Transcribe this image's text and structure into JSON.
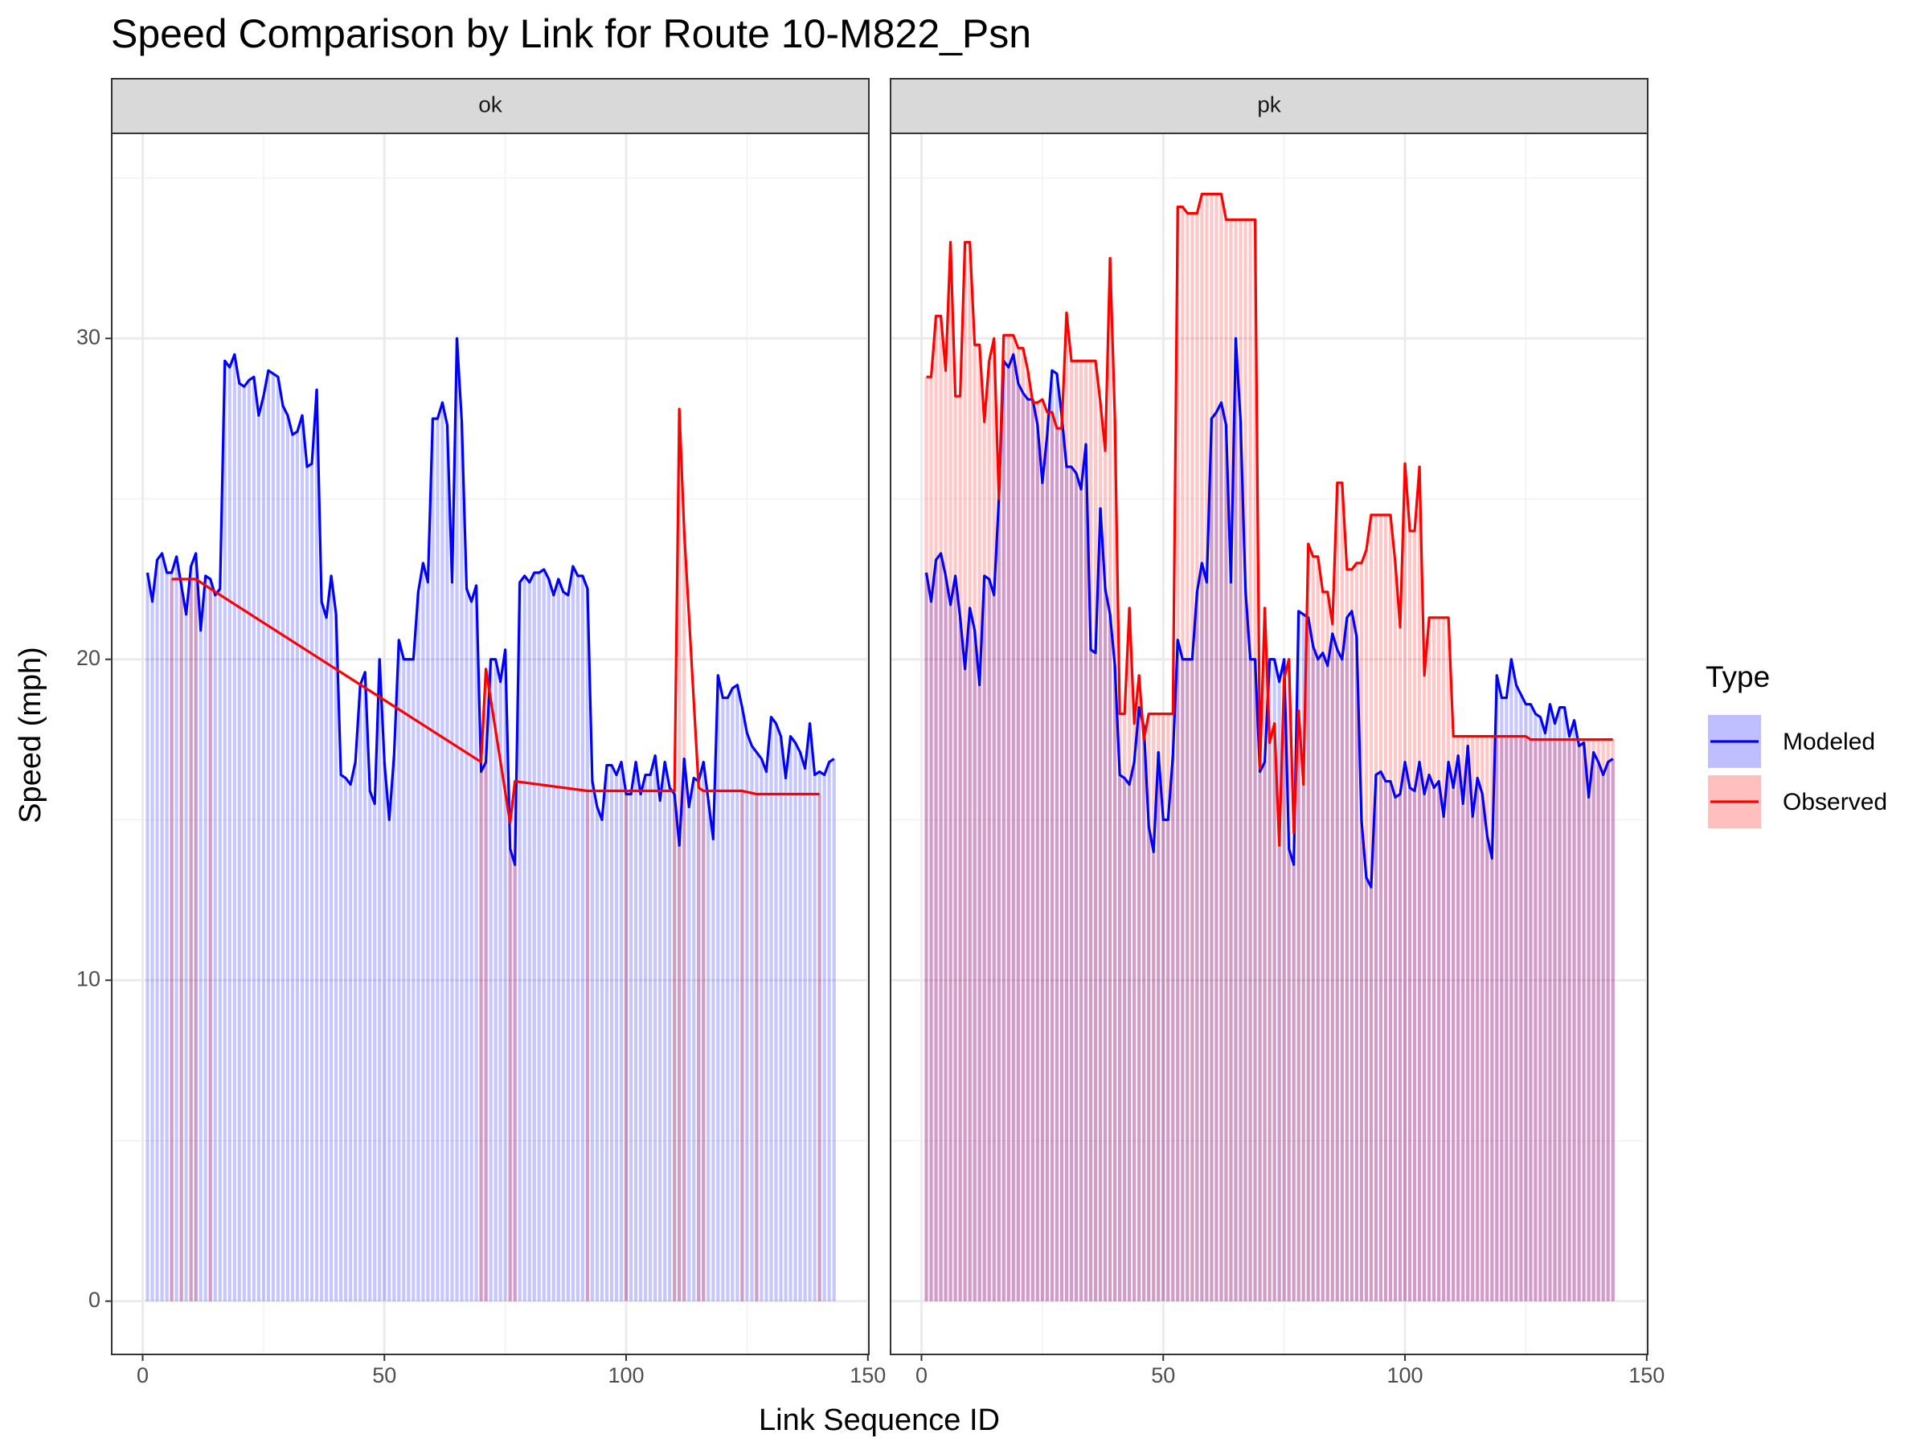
{
  "chart_data": {
    "type": "line",
    "title": "Speed Comparison by Link for Route 10-M822_Psn",
    "xlabel": "Link Sequence ID",
    "ylabel": "Speed (mph)",
    "legend_title": "Type",
    "xlim": [
      -6.4,
      150.2
    ],
    "ylim": [
      -1.66,
      36.39
    ],
    "xticks": [
      0,
      50,
      100,
      150
    ],
    "yticks": [
      0,
      10,
      20,
      30
    ],
    "minor_xticks": [
      25,
      75,
      125
    ],
    "minor_yticks": [
      5,
      15,
      25,
      35
    ],
    "grid": true,
    "facets": [
      {
        "label": "ok",
        "series": [
          {
            "name": "Modeled",
            "color": "#0000ff",
            "x": [
              1,
              2,
              3,
              4,
              5,
              6,
              7,
              8,
              9,
              10,
              11,
              12,
              13,
              14,
              15,
              16,
              17,
              18,
              19,
              20,
              21,
              22,
              23,
              24,
              25,
              26,
              27,
              28,
              29,
              30,
              31,
              32,
              33,
              34,
              35,
              36,
              37,
              38,
              39,
              40,
              41,
              42,
              43,
              44,
              45,
              46,
              47,
              48,
              49,
              50,
              51,
              52,
              53,
              54,
              55,
              56,
              57,
              58,
              59,
              60,
              61,
              62,
              63,
              64,
              65,
              66,
              67,
              68,
              69,
              70,
              71,
              72,
              73,
              74,
              75,
              76,
              77,
              78,
              79,
              80,
              81,
              82,
              83,
              84,
              85,
              86,
              87,
              88,
              89,
              90,
              91,
              92,
              93,
              94,
              95,
              96,
              97,
              98,
              99,
              100,
              101,
              102,
              103,
              104,
              105,
              106,
              107,
              108,
              109,
              110,
              111,
              112,
              113,
              114,
              115,
              116,
              117,
              118,
              119,
              120,
              121,
              122,
              123,
              124,
              125,
              126,
              127,
              128,
              129,
              130,
              131,
              132,
              133,
              134,
              135,
              136,
              137,
              138,
              139,
              140,
              141,
              142,
              143
            ],
            "values": [
              22.7,
              21.8,
              23.1,
              23.3,
              22.7,
              22.7,
              23.2,
              22.3,
              21.4,
              22.9,
              23.3,
              20.9,
              22.6,
              22.5,
              22.0,
              22.2,
              29.3,
              29.1,
              29.5,
              28.6,
              28.5,
              28.7,
              28.8,
              27.6,
              28.2,
              29.0,
              28.9,
              28.8,
              27.9,
              27.6,
              27.0,
              27.1,
              27.6,
              26.0,
              26.1,
              28.4,
              21.8,
              21.3,
              22.6,
              21.4,
              16.4,
              16.3,
              16.1,
              16.8,
              19.2,
              19.6,
              15.9,
              15.5,
              20.0,
              16.8,
              15.0,
              17.0,
              20.6,
              20.0,
              20.0,
              20.0,
              22.1,
              23.0,
              22.4,
              27.5,
              27.5,
              28.0,
              27.3,
              22.4,
              30.0,
              27.4,
              22.2,
              21.8,
              22.3,
              16.5,
              16.8,
              20.0,
              20.0,
              19.3,
              20.3,
              14.1,
              13.6,
              22.4,
              22.6,
              22.4,
              22.7,
              22.7,
              22.8,
              22.5,
              22.0,
              22.5,
              22.1,
              22.0,
              22.9,
              22.6,
              22.6,
              22.2,
              16.2,
              15.4,
              15.0,
              16.7,
              16.7,
              16.4,
              16.8,
              15.8,
              15.8,
              16.8,
              15.8,
              16.4,
              16.4,
              17.0,
              15.6,
              16.8,
              16.0,
              15.8,
              14.2,
              16.9,
              15.4,
              16.3,
              16.2,
              16.8,
              15.6,
              14.4,
              19.5,
              18.8,
              18.8,
              19.1,
              19.2,
              18.5,
              17.7,
              17.3,
              17.1,
              16.9,
              16.5,
              18.2,
              18.0,
              17.6,
              16.3,
              17.6,
              17.4,
              17.1,
              16.6,
              18.0,
              16.4,
              16.5,
              16.4,
              16.8,
              16.9
            ]
          },
          {
            "name": "Observed",
            "color": "#ff0000",
            "x": [
              6,
              8,
              10,
              11,
              14,
              70,
              71,
              76,
              77,
              92,
              100,
              110,
              111,
              112,
              115,
              116,
              124,
              127,
              140
            ],
            "values": [
              22.5,
              22.5,
              22.5,
              22.5,
              22.2,
              16.8,
              19.7,
              14.9,
              16.2,
              15.9,
              15.9,
              15.9,
              27.8,
              24.0,
              16.0,
              15.9,
              15.9,
              15.8,
              15.8
            ]
          }
        ]
      },
      {
        "label": "pk",
        "series": [
          {
            "name": "Modeled",
            "color": "#0000ff",
            "x": [
              1,
              2,
              3,
              4,
              5,
              6,
              7,
              8,
              9,
              10,
              11,
              12,
              13,
              14,
              15,
              16,
              17,
              18,
              19,
              20,
              21,
              22,
              23,
              24,
              25,
              26,
              27,
              28,
              29,
              30,
              31,
              32,
              33,
              34,
              35,
              36,
              37,
              38,
              39,
              40,
              41,
              42,
              43,
              44,
              45,
              46,
              47,
              48,
              49,
              50,
              51,
              52,
              53,
              54,
              55,
              56,
              57,
              58,
              59,
              60,
              61,
              62,
              63,
              64,
              65,
              66,
              67,
              68,
              69,
              70,
              71,
              72,
              73,
              74,
              75,
              76,
              77,
              78,
              79,
              80,
              81,
              82,
              83,
              84,
              85,
              86,
              87,
              88,
              89,
              90,
              91,
              92,
              93,
              94,
              95,
              96,
              97,
              98,
              99,
              100,
              101,
              102,
              103,
              104,
              105,
              106,
              107,
              108,
              109,
              110,
              111,
              112,
              113,
              114,
              115,
              116,
              117,
              118,
              119,
              120,
              121,
              122,
              123,
              124,
              125,
              126,
              127,
              128,
              129,
              130,
              131,
              132,
              133,
              134,
              135,
              136,
              137,
              138,
              139,
              140,
              141,
              142,
              143
            ],
            "values": [
              22.7,
              21.8,
              23.1,
              23.3,
              22.6,
              21.7,
              22.6,
              21.3,
              19.7,
              21.6,
              20.9,
              19.2,
              22.6,
              22.5,
              22.0,
              25.0,
              29.3,
              29.1,
              29.5,
              28.6,
              28.3,
              28.1,
              28.1,
              27.3,
              25.5,
              27.0,
              29.0,
              28.9,
              27.6,
              26.0,
              26.0,
              25.8,
              25.3,
              26.7,
              20.3,
              20.2,
              24.7,
              22.2,
              21.4,
              19.8,
              16.4,
              16.3,
              16.1,
              16.8,
              18.5,
              17.9,
              14.8,
              14.0,
              17.1,
              15.0,
              15.0,
              17.0,
              20.6,
              20.0,
              20.0,
              20.0,
              22.1,
              23.0,
              22.4,
              27.5,
              27.7,
              28.0,
              27.3,
              22.4,
              30.0,
              27.4,
              22.2,
              20.0,
              20.0,
              16.5,
              16.8,
              20.0,
              20.0,
              19.3,
              20.0,
              14.1,
              13.6,
              21.5,
              21.4,
              21.3,
              20.4,
              20.0,
              20.2,
              19.8,
              20.8,
              20.3,
              20.0,
              21.3,
              21.5,
              20.7,
              15.0,
              13.2,
              12.9,
              16.4,
              16.5,
              16.2,
              16.2,
              15.7,
              15.8,
              16.8,
              16.0,
              15.9,
              16.8,
              15.8,
              16.4,
              16.0,
              16.2,
              15.1,
              16.8,
              16.0,
              17.0,
              15.5,
              17.3,
              15.1,
              16.3,
              15.8,
              14.5,
              13.8,
              19.5,
              18.8,
              18.8,
              20.0,
              19.2,
              18.9,
              18.6,
              18.6,
              18.3,
              18.2,
              17.7,
              18.6,
              18.0,
              18.5,
              18.5,
              17.6,
              18.1,
              17.3,
              17.4,
              15.7,
              17.1,
              16.8,
              16.4,
              16.8,
              16.9
            ]
          },
          {
            "name": "Observed",
            "color": "#ff0000",
            "x": [
              1,
              2,
              3,
              4,
              5,
              6,
              7,
              8,
              9,
              10,
              11,
              12,
              13,
              14,
              15,
              16,
              17,
              18,
              19,
              20,
              21,
              22,
              23,
              24,
              25,
              26,
              27,
              28,
              29,
              30,
              31,
              32,
              33,
              34,
              35,
              36,
              37,
              38,
              39,
              40,
              41,
              42,
              43,
              44,
              45,
              46,
              47,
              48,
              49,
              50,
              51,
              52,
              53,
              54,
              55,
              56,
              57,
              58,
              59,
              60,
              61,
              62,
              63,
              64,
              65,
              66,
              67,
              68,
              69,
              70,
              71,
              72,
              73,
              74,
              75,
              76,
              77,
              78,
              79,
              80,
              81,
              82,
              83,
              84,
              85,
              86,
              87,
              88,
              89,
              90,
              91,
              92,
              93,
              94,
              95,
              96,
              97,
              98,
              99,
              100,
              101,
              102,
              103,
              104,
              105,
              106,
              107,
              108,
              109,
              110,
              111,
              112,
              113,
              114,
              115,
              116,
              117,
              118,
              119,
              120,
              121,
              122,
              123,
              124,
              125,
              126,
              127,
              128,
              129,
              130,
              131,
              132,
              133,
              134,
              135,
              136,
              137,
              138,
              139,
              140,
              141,
              142,
              143
            ],
            "values": [
              28.8,
              28.8,
              30.7,
              30.7,
              29.0,
              33.0,
              28.2,
              28.2,
              33.0,
              33.0,
              29.8,
              29.8,
              27.4,
              29.3,
              30.0,
              25.0,
              30.1,
              30.1,
              30.1,
              29.7,
              29.7,
              29.0,
              28.0,
              28.0,
              28.1,
              27.7,
              27.7,
              27.2,
              27.2,
              30.8,
              29.3,
              29.3,
              29.3,
              29.3,
              29.3,
              29.3,
              28.0,
              26.5,
              32.5,
              27.5,
              18.3,
              18.3,
              21.6,
              18.0,
              19.5,
              17.5,
              18.3,
              18.3,
              18.3,
              18.3,
              18.3,
              18.3,
              34.1,
              34.1,
              33.9,
              33.9,
              33.9,
              34.5,
              34.5,
              34.5,
              34.5,
              34.5,
              33.7,
              33.7,
              33.7,
              33.7,
              33.7,
              33.7,
              33.7,
              16.6,
              21.6,
              17.4,
              18.0,
              14.2,
              19.4,
              20.0,
              14.6,
              18.4,
              16.1,
              23.6,
              23.2,
              23.2,
              22.1,
              22.1,
              21.1,
              25.5,
              25.5,
              22.8,
              22.8,
              23.0,
              23.0,
              23.4,
              24.5,
              24.5,
              24.5,
              24.5,
              24.5,
              23.0,
              21.0,
              26.1,
              24.0,
              24.0,
              26.0,
              19.5,
              21.3,
              21.3,
              21.3,
              21.3,
              21.3,
              17.6,
              17.6,
              17.6,
              17.6,
              17.6,
              17.6,
              17.6,
              17.6,
              17.6,
              17.6,
              17.6,
              17.6,
              17.6,
              17.6,
              17.6,
              17.6,
              17.5,
              17.5,
              17.5,
              17.5,
              17.5,
              17.5,
              17.5,
              17.5,
              17.5,
              17.5,
              17.5,
              17.5,
              17.5,
              17.5,
              17.5,
              17.5,
              17.5,
              17.5
            ]
          }
        ]
      }
    ]
  }
}
